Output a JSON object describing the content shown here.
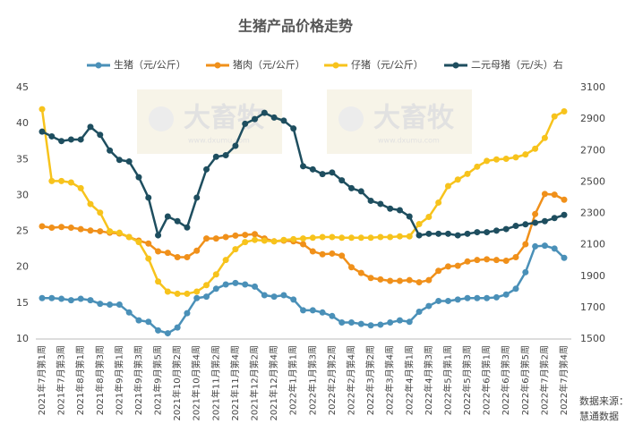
{
  "chart_data": {
    "type": "line",
    "title": "生猪产品价格走势",
    "watermark": [
      "大畜牧",
      "www.dxumu.com"
    ],
    "source": [
      "数据来源：",
      "慧通数据"
    ],
    "categories": [
      "2021年7月第1周",
      null,
      "2021年7月第3周",
      null,
      "2021年8月第1周",
      null,
      "2021年8月第3周",
      null,
      "2021年9月第1周",
      null,
      "2021年9月第3周",
      null,
      "2021年9月第5周",
      null,
      "2021年10月第2周",
      null,
      "2021年10月第4周",
      null,
      "2021年11月第2周",
      null,
      "2021年11月第4周",
      null,
      "2021年12月第2周",
      null,
      "2021年12月第4周",
      null,
      "2022年1月第1周",
      null,
      "2022年1月第3周",
      null,
      "2022年2月第2周",
      null,
      "2022年2月第4周",
      null,
      "2022年3月第2周",
      null,
      "2022年3月第4周",
      null,
      "2022年4月第1周",
      null,
      "2022年4月第3周",
      null,
      "2022年5月第1周",
      null,
      "2022年5月第3周",
      null,
      "2022年6月第1周",
      null,
      "2022年6月第3周",
      null,
      "2022年6月第5周",
      null,
      "2022年7月第2周",
      null,
      "2022年7月第4周"
    ],
    "series": [
      {
        "name": "生猪（元/公斤）",
        "color": "#4a90b8",
        "values": [
          15.7,
          15.7,
          15.6,
          15.4,
          15.6,
          15.4,
          14.9,
          14.8,
          14.8,
          13.7,
          12.6,
          12.4,
          11.2,
          10.8,
          11.6,
          13.6,
          15.7,
          15.9,
          17.0,
          17.6,
          17.8,
          17.6,
          17.3,
          16.1,
          15.9,
          16.1,
          15.5,
          14.0,
          14.0,
          13.7,
          13.2,
          12.3,
          12.3,
          12.1,
          11.9,
          12.0,
          12.3,
          12.6,
          12.4,
          13.8,
          14.6,
          15.3,
          15.3,
          15.5,
          15.7,
          15.7,
          15.7,
          15.8,
          16.2,
          17.0,
          19.3,
          22.9,
          23.0,
          22.6,
          21.3
        ]
      },
      {
        "name": "猪肉（元/公斤）",
        "color": "#f0901a",
        "values": [
          25.7,
          25.5,
          25.6,
          25.5,
          25.3,
          25.1,
          25.0,
          24.8,
          24.7,
          24.2,
          23.7,
          23.3,
          22.2,
          22.0,
          21.4,
          21.4,
          22.3,
          24.0,
          24.0,
          24.2,
          24.4,
          24.5,
          24.6,
          24.0,
          23.6,
          23.7,
          23.6,
          23.2,
          22.2,
          21.8,
          21.9,
          21.6,
          20.0,
          19.2,
          18.5,
          18.3,
          18.1,
          18.1,
          18.2,
          17.9,
          18.2,
          19.5,
          20.1,
          20.2,
          20.8,
          21.0,
          21.1,
          21.0,
          20.9,
          21.4,
          23.2,
          27.4,
          30.2,
          30.1,
          29.4
        ]
      },
      {
        "name": "仔猪（元/公斤）",
        "color": "#f7c31c",
        "values": [
          42.0,
          32.0,
          32.0,
          31.8,
          31.0,
          28.8,
          27.6,
          25.0,
          24.8,
          24.2,
          23.5,
          21.2,
          18.0,
          16.6,
          16.3,
          16.3,
          16.6,
          17.5,
          19.0,
          21.0,
          22.5,
          23.5,
          23.8,
          23.7,
          23.6,
          23.8,
          23.9,
          24.0,
          24.1,
          24.2,
          24.2,
          24.1,
          24.1,
          24.1,
          24.1,
          24.2,
          24.2,
          24.3,
          24.3,
          26.0,
          27.0,
          29.0,
          31.3,
          32.2,
          33.0,
          34.0,
          34.8,
          35.0,
          35.1,
          35.3,
          35.7,
          36.5,
          38.0,
          41.0,
          41.7
        ]
      },
      {
        "name": "二元母猪（元/头）右",
        "color": "#1e4e5f",
        "axis": "y2",
        "values": [
          2820,
          2790,
          2760,
          2770,
          2770,
          2850,
          2800,
          2700,
          2640,
          2630,
          2530,
          2400,
          2160,
          2280,
          2250,
          2210,
          2400,
          2580,
          2660,
          2670,
          2730,
          2870,
          2900,
          2940,
          2910,
          2890,
          2840,
          2600,
          2580,
          2550,
          2560,
          2510,
          2460,
          2440,
          2380,
          2360,
          2330,
          2320,
          2280,
          2160,
          2170,
          2170,
          2170,
          2160,
          2170,
          2180,
          2180,
          2190,
          2200,
          2220,
          2230,
          2240,
          2250,
          2270,
          2290
        ]
      }
    ],
    "ylim": [
      10,
      45
    ],
    "yticks": [
      10,
      15,
      20,
      25,
      30,
      35,
      40,
      45
    ],
    "y2lim": [
      1500,
      3100
    ],
    "y2ticks": [
      1500,
      1700,
      1900,
      2100,
      2300,
      2500,
      2700,
      2900,
      3100
    ]
  }
}
